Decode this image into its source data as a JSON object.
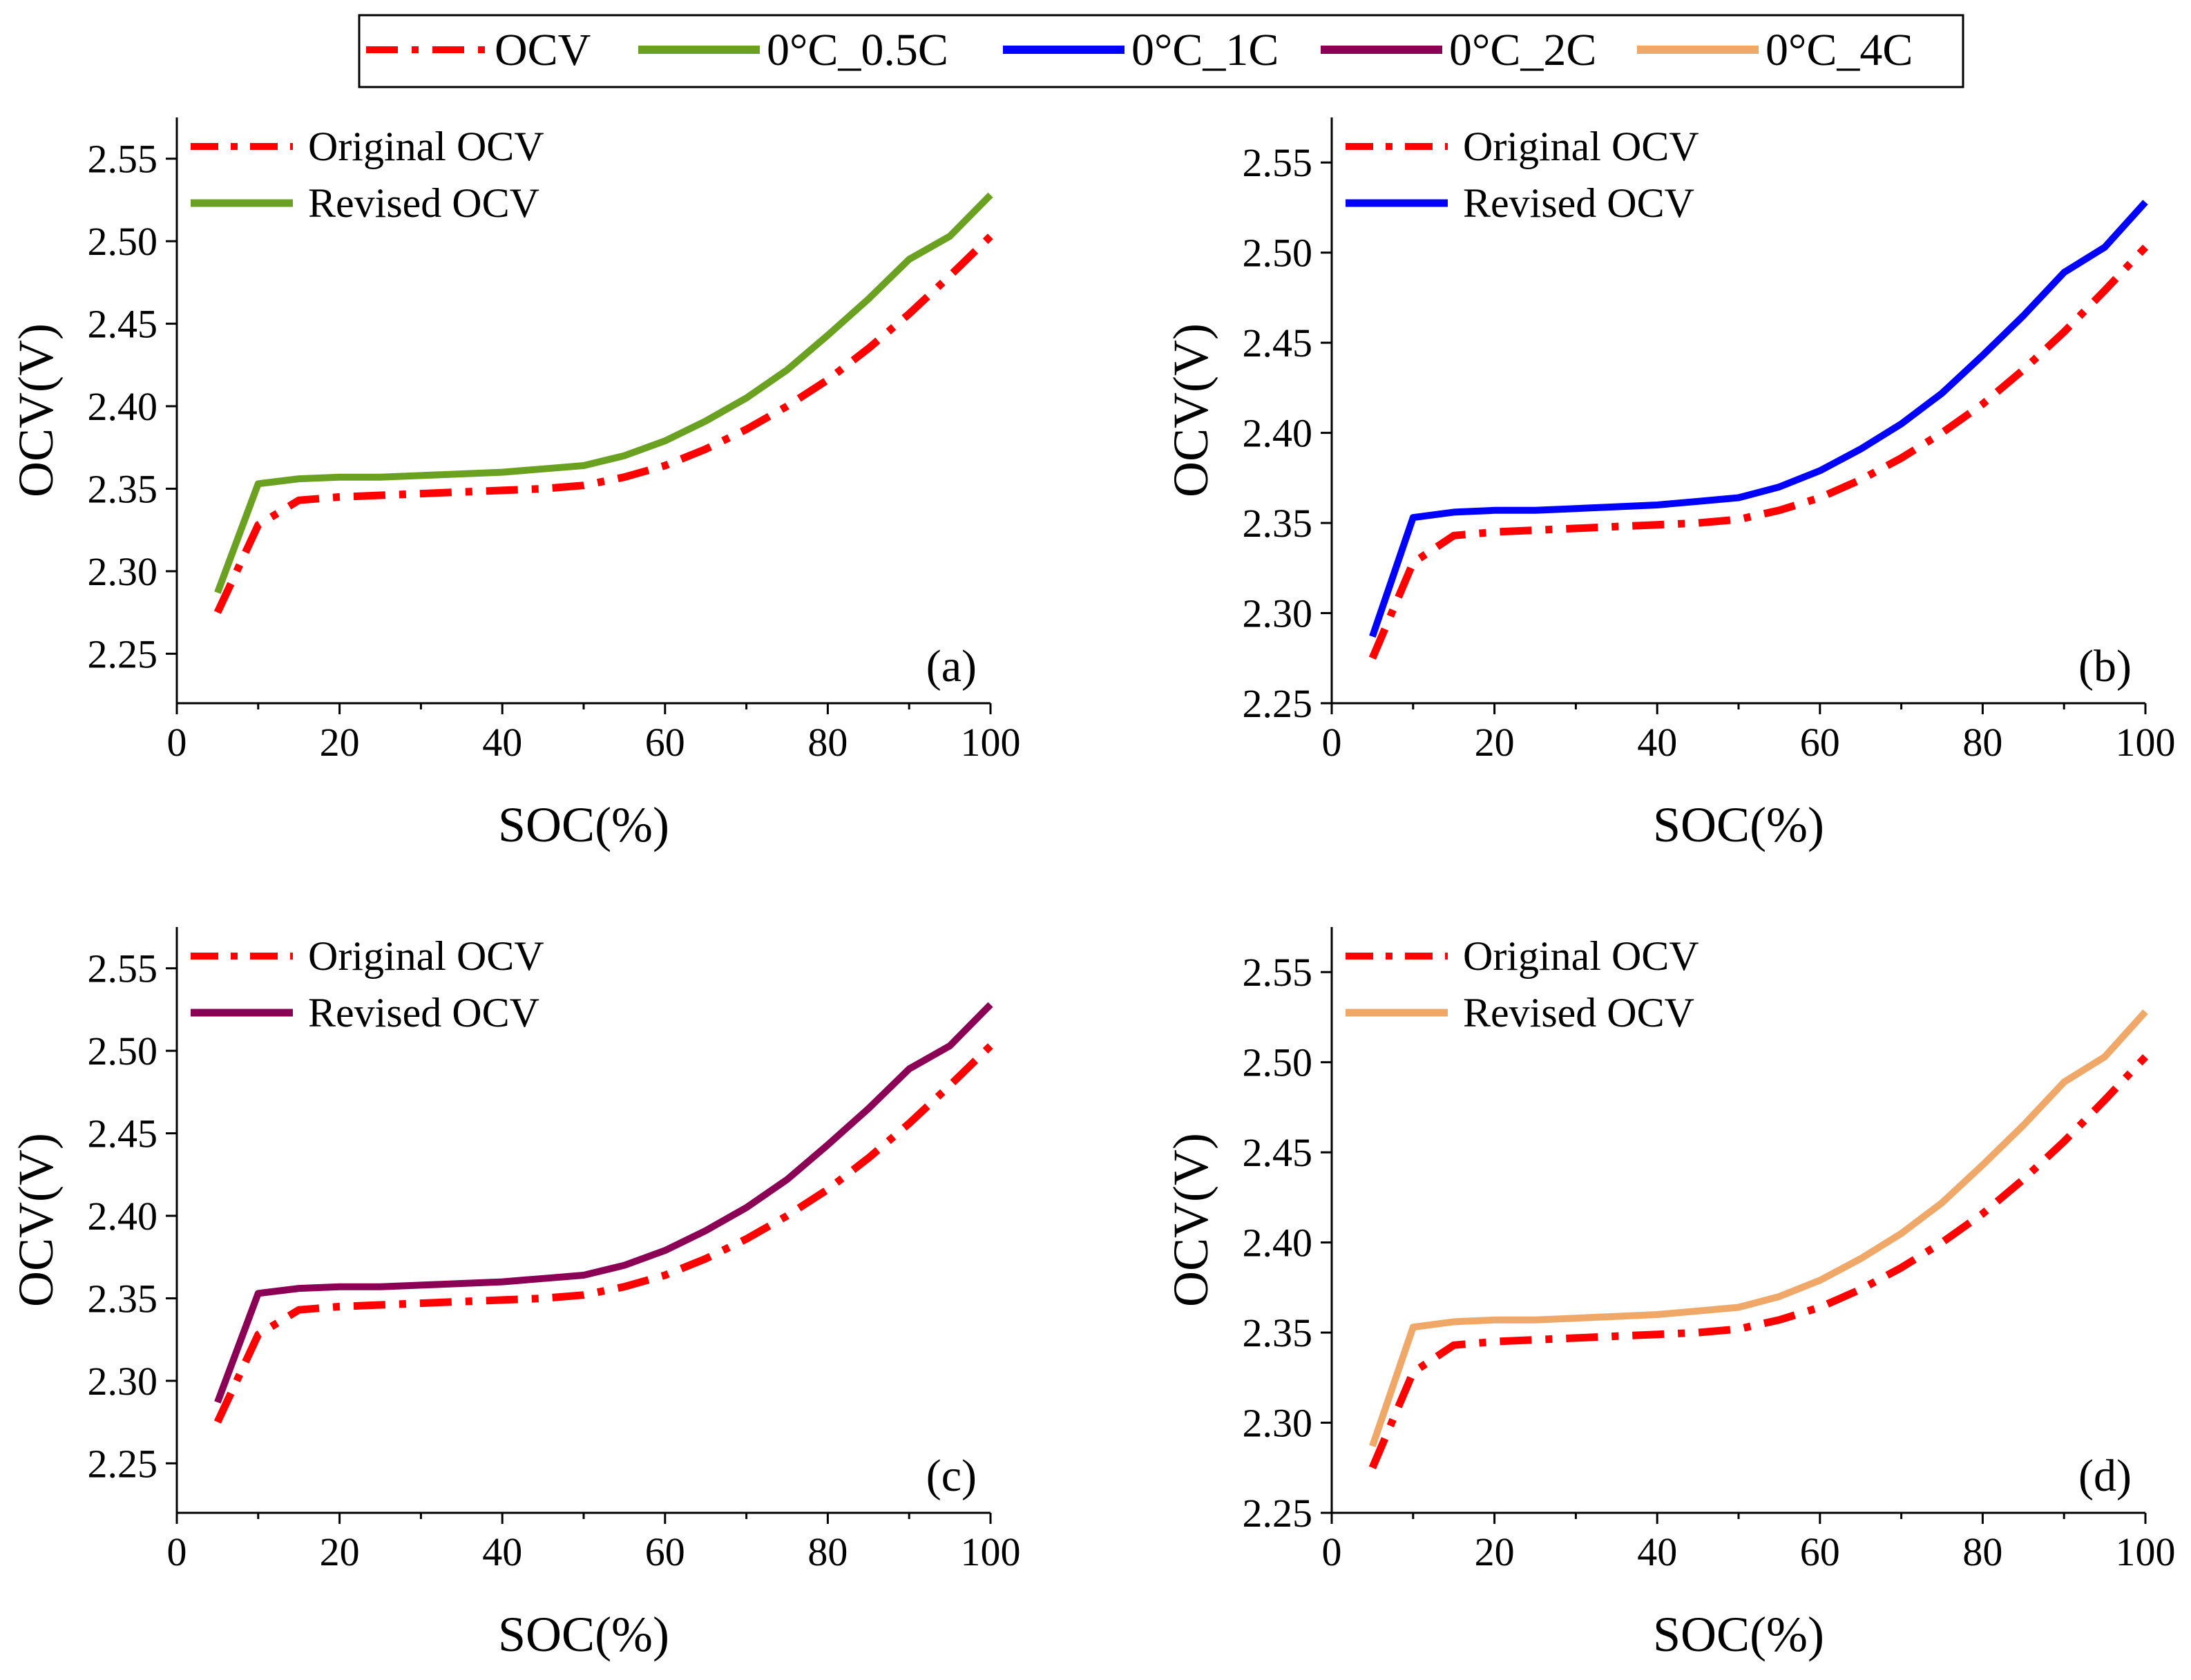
{
  "colors": {
    "ocv": "#ff0000",
    "c05": "#6aa121",
    "c1": "#0000ff",
    "c2": "#8b0055",
    "c4": "#f0a868",
    "axis": "#000000"
  },
  "top_legend": {
    "items": [
      {
        "label": "OCV",
        "key": "ocv",
        "dash": true
      },
      {
        "label": "0°C_0.5C",
        "key": "c05",
        "dash": false
      },
      {
        "label": "0°C_1C",
        "key": "c1",
        "dash": false
      },
      {
        "label": "0°C_2C",
        "key": "c2",
        "dash": false
      },
      {
        "label": "0°C_4C",
        "key": "c4",
        "dash": false
      }
    ]
  },
  "chart_data": [
    {
      "type": "line",
      "panel_label": "(a)",
      "xlabel": "SOC(%)",
      "ylabel": "OCV(V)",
      "xlim": [
        0,
        100
      ],
      "ylim": [
        2.22,
        2.575
      ],
      "xticks": [
        "0",
        "20",
        "40",
        "60",
        "80",
        "100"
      ],
      "yticks": [
        "2.25",
        "2.30",
        "2.35",
        "2.40",
        "2.45",
        "2.50",
        "2.55"
      ],
      "legend": [
        "Original OCV",
        "Revised OCV"
      ],
      "x": [
        5,
        10,
        15,
        20,
        25,
        30,
        35,
        40,
        45,
        50,
        55,
        60,
        65,
        70,
        75,
        80,
        85,
        90,
        95,
        100
      ],
      "series": [
        {
          "name": "Original OCV",
          "key": "ocv",
          "dash": true,
          "values": [
            2.275,
            2.328,
            2.343,
            2.345,
            2.346,
            2.347,
            2.348,
            2.349,
            2.35,
            2.352,
            2.357,
            2.364,
            2.374,
            2.386,
            2.4,
            2.416,
            2.435,
            2.456,
            2.479,
            2.503
          ]
        },
        {
          "name": "Revised OCV",
          "key": "c05",
          "dash": false,
          "values": [
            2.287,
            2.353,
            2.356,
            2.357,
            2.357,
            2.358,
            2.359,
            2.36,
            2.362,
            2.364,
            2.37,
            2.379,
            2.391,
            2.405,
            2.422,
            2.443,
            2.465,
            2.489,
            2.503,
            2.528
          ]
        }
      ]
    },
    {
      "type": "line",
      "panel_label": "(b)",
      "xlabel": "SOC(%)",
      "ylabel": "OCV(V)",
      "xlim": [
        0,
        100
      ],
      "ylim": [
        2.25,
        2.575
      ],
      "xticks": [
        "0",
        "20",
        "40",
        "60",
        "80",
        "100"
      ],
      "yticks": [
        "2.25",
        "2.30",
        "2.35",
        "2.40",
        "2.45",
        "2.50",
        "2.55"
      ],
      "legend": [
        "Original OCV",
        "Revised OCV"
      ],
      "x": [
        5,
        10,
        15,
        20,
        25,
        30,
        35,
        40,
        45,
        50,
        55,
        60,
        65,
        70,
        75,
        80,
        85,
        90,
        95,
        100
      ],
      "series": [
        {
          "name": "Original OCV",
          "key": "ocv",
          "dash": true,
          "values": [
            2.275,
            2.328,
            2.343,
            2.345,
            2.346,
            2.347,
            2.348,
            2.349,
            2.35,
            2.352,
            2.357,
            2.364,
            2.374,
            2.386,
            2.4,
            2.416,
            2.435,
            2.456,
            2.479,
            2.503
          ]
        },
        {
          "name": "Revised OCV",
          "key": "c1",
          "dash": false,
          "values": [
            2.287,
            2.353,
            2.356,
            2.357,
            2.357,
            2.358,
            2.359,
            2.36,
            2.362,
            2.364,
            2.37,
            2.379,
            2.391,
            2.405,
            2.422,
            2.443,
            2.465,
            2.489,
            2.503,
            2.528
          ]
        }
      ]
    },
    {
      "type": "line",
      "panel_label": "(c)",
      "xlabel": "SOC(%)",
      "ylabel": "OCV(V)",
      "xlim": [
        0,
        100
      ],
      "ylim": [
        2.22,
        2.575
      ],
      "xticks": [
        "0",
        "20",
        "40",
        "60",
        "80",
        "100"
      ],
      "yticks": [
        "2.25",
        "2.30",
        "2.35",
        "2.40",
        "2.45",
        "2.50",
        "2.55"
      ],
      "legend": [
        "Original OCV",
        "Revised OCV"
      ],
      "x": [
        5,
        10,
        15,
        20,
        25,
        30,
        35,
        40,
        45,
        50,
        55,
        60,
        65,
        70,
        75,
        80,
        85,
        90,
        95,
        100
      ],
      "series": [
        {
          "name": "Original OCV",
          "key": "ocv",
          "dash": true,
          "values": [
            2.275,
            2.328,
            2.343,
            2.345,
            2.346,
            2.347,
            2.348,
            2.349,
            2.35,
            2.352,
            2.357,
            2.364,
            2.374,
            2.386,
            2.4,
            2.416,
            2.435,
            2.456,
            2.479,
            2.503
          ]
        },
        {
          "name": "Revised OCV",
          "key": "c2",
          "dash": false,
          "values": [
            2.287,
            2.353,
            2.356,
            2.357,
            2.357,
            2.358,
            2.359,
            2.36,
            2.362,
            2.364,
            2.37,
            2.379,
            2.391,
            2.405,
            2.422,
            2.443,
            2.465,
            2.489,
            2.503,
            2.528
          ]
        }
      ]
    },
    {
      "type": "line",
      "panel_label": "(d)",
      "xlabel": "SOC(%)",
      "ylabel": "OCV(V)",
      "xlim": [
        0,
        100
      ],
      "ylim": [
        2.25,
        2.575
      ],
      "xticks": [
        "0",
        "20",
        "40",
        "60",
        "80",
        "100"
      ],
      "yticks": [
        "2.25",
        "2.30",
        "2.35",
        "2.40",
        "2.45",
        "2.50",
        "2.55"
      ],
      "legend": [
        "Original OCV",
        "Revised OCV"
      ],
      "x": [
        5,
        10,
        15,
        20,
        25,
        30,
        35,
        40,
        45,
        50,
        55,
        60,
        65,
        70,
        75,
        80,
        85,
        90,
        95,
        100
      ],
      "series": [
        {
          "name": "Original OCV",
          "key": "ocv",
          "dash": true,
          "values": [
            2.275,
            2.328,
            2.343,
            2.345,
            2.346,
            2.347,
            2.348,
            2.349,
            2.35,
            2.352,
            2.357,
            2.364,
            2.374,
            2.386,
            2.4,
            2.416,
            2.435,
            2.456,
            2.479,
            2.503
          ]
        },
        {
          "name": "Revised OCV",
          "key": "c4",
          "dash": false,
          "values": [
            2.287,
            2.353,
            2.356,
            2.357,
            2.357,
            2.358,
            2.359,
            2.36,
            2.362,
            2.364,
            2.37,
            2.379,
            2.391,
            2.405,
            2.422,
            2.443,
            2.465,
            2.489,
            2.503,
            2.528
          ]
        }
      ]
    }
  ]
}
